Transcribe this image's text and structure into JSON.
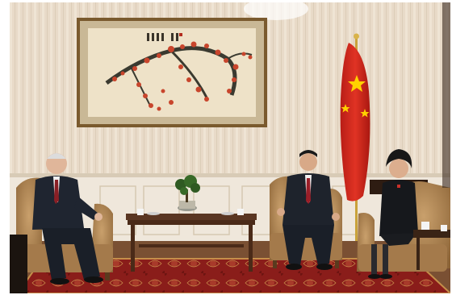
{
  "photo": {
    "painting_inscription": "",
    "colors": {
      "wall": "#e9dccb",
      "wainscot": "#f2ece2",
      "carpet": "#8e1f1c",
      "flag_red": "#d42a1f",
      "flag_star": "#ffd200",
      "chair": "#b48a5c",
      "table": "#5a3622",
      "blossom": "#c8452c"
    }
  }
}
